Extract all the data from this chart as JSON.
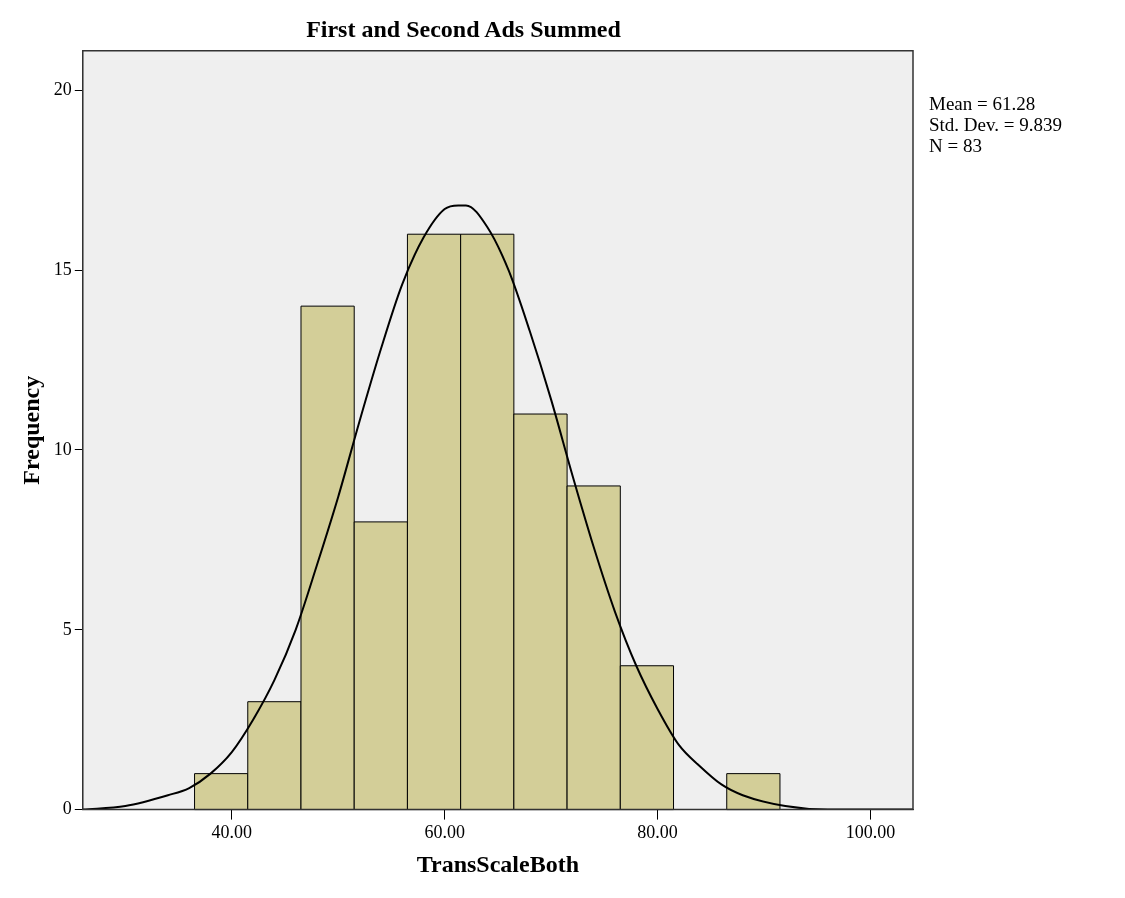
{
  "chart_data": {
    "type": "histogram",
    "title": "First and Second Ads Summed",
    "xlabel": "TransScaleBoth",
    "ylabel": "Frequency",
    "bins": [
      36.5,
      41.5,
      46.5,
      51.5,
      56.5,
      61.5,
      66.5,
      71.5,
      76.5,
      81.5,
      86.5,
      91.5
    ],
    "values": [
      1,
      3,
      14,
      8,
      16,
      16,
      11,
      9,
      4,
      0,
      1
    ],
    "color": "#d3ce98",
    "series": [
      {
        "type": "line",
        "color": "#000000",
        "marker": "none",
        "x": [
          26,
          30,
          34,
          36,
          38,
          40,
          42,
          44,
          46,
          48,
          50,
          52,
          54,
          56,
          58,
          60,
          61.28,
          62,
          64,
          66,
          68,
          70,
          72,
          74,
          76,
          78,
          80,
          82,
          84,
          86,
          88,
          92,
          96,
          100,
          104
        ],
        "values": [
          0.0,
          0.1,
          0.4,
          0.6,
          1.0,
          1.6,
          2.5,
          3.6,
          5.0,
          6.8,
          8.7,
          10.8,
          12.8,
          14.6,
          15.9,
          16.7,
          16.8,
          16.8,
          16.2,
          15.0,
          13.3,
          11.4,
          9.3,
          7.3,
          5.5,
          4.0,
          2.8,
          1.8,
          1.2,
          0.7,
          0.4,
          0.1,
          0.0,
          0.0,
          0.0
        ]
      }
    ],
    "xlim": [
      26,
      104
    ],
    "xticks": [
      {
        "value": 40,
        "label": "40.00"
      },
      {
        "value": 60,
        "label": "60.00"
      },
      {
        "value": 80,
        "label": "80.00"
      },
      {
        "value": 100,
        "label": "100.00"
      }
    ],
    "ylim": [
      0,
      21.1
    ],
    "yticks": [
      0,
      5,
      10,
      15,
      20
    ],
    "grid": false,
    "legend": false,
    "annotations": [
      "Mean = 61.28",
      "Std. Dev. = 9.839",
      "N = 83"
    ]
  }
}
